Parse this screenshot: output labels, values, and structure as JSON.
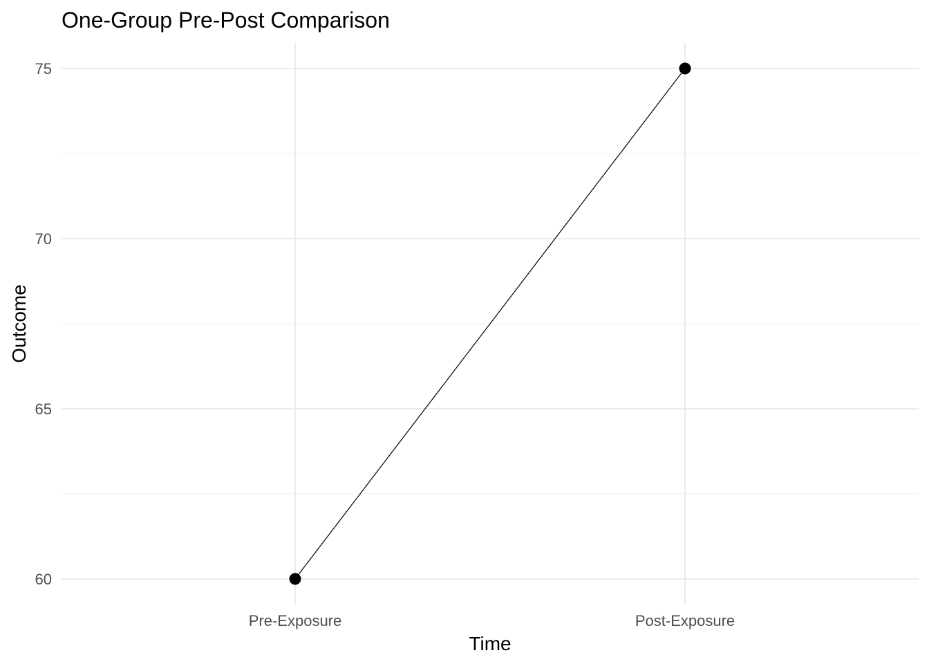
{
  "chart_data": {
    "type": "line",
    "title": "One-Group Pre-Post Comparison",
    "xlabel": "Time",
    "ylabel": "Outcome",
    "categories": [
      "Pre-Exposure",
      "Post-Exposure"
    ],
    "values": [
      60,
      75
    ],
    "y_ticks": [
      60,
      65,
      70,
      75
    ],
    "ylim": [
      59.25,
      75.75
    ],
    "grid": true,
    "legend": "none",
    "colors": {
      "line": "#000000",
      "point": "#000000",
      "grid_major": "#ebebeb",
      "grid_minor": "#f4f4f4",
      "tick_text": "#4d4d4d"
    }
  }
}
